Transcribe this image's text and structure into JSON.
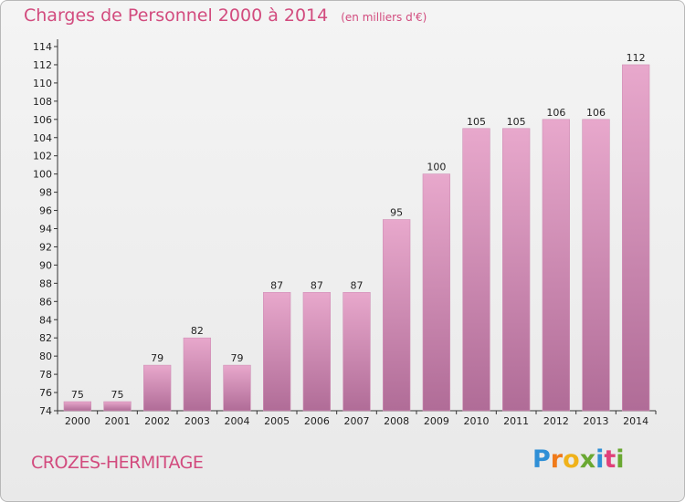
{
  "header": {
    "title": "Charges de Personnel 2000 à 2014",
    "subtitle": "(en milliers d'€)"
  },
  "footer": {
    "commune": "CROZES-HERMITAGE",
    "logo_letters": [
      "P",
      "r",
      "o",
      "x",
      "i",
      "t",
      "i"
    ],
    "logo_colors": [
      "#2f8fd6",
      "#f07a1a",
      "#f0b21a",
      "#6aa832",
      "#2f8fd6",
      "#e0407a",
      "#6aa832"
    ]
  },
  "colors": {
    "title": "#d24b7e",
    "bar_top": "#e8a8cc",
    "bar_bottom": "#b06c97",
    "bar_edge": "#d090b6"
  },
  "chart_data": {
    "type": "bar",
    "categories": [
      "2000",
      "2001",
      "2002",
      "2003",
      "2004",
      "2005",
      "2006",
      "2007",
      "2008",
      "2009",
      "2010",
      "2011",
      "2012",
      "2013",
      "2014"
    ],
    "values": [
      75,
      75,
      79,
      82,
      79,
      87,
      87,
      87,
      95,
      100,
      105,
      105,
      106,
      106,
      112
    ],
    "ylim": [
      74,
      114
    ],
    "yticks": [
      74,
      76,
      78,
      80,
      82,
      84,
      86,
      88,
      90,
      92,
      94,
      96,
      98,
      100,
      102,
      104,
      106,
      108,
      110,
      112,
      114
    ],
    "grid": false
  }
}
